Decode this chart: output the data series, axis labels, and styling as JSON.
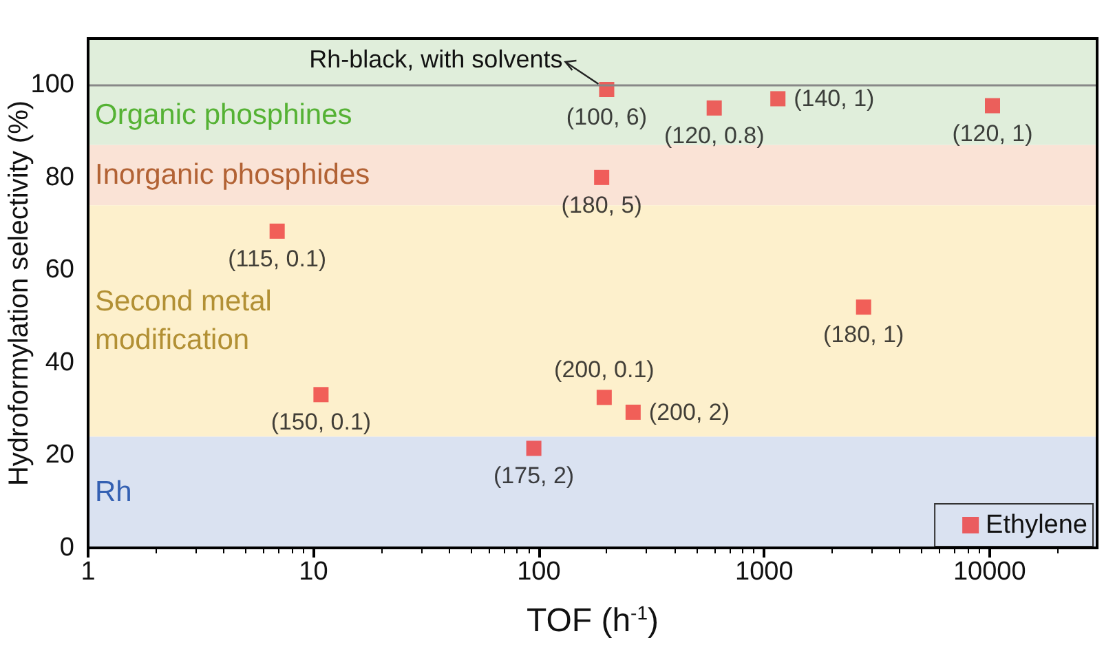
{
  "chart_data": {
    "type": "scatter",
    "xlabel": "TOF (h$^{-1}$)",
    "ylabel": "Hydroformylation selectivity (%)",
    "log": "x",
    "xlim": [
      1,
      30000
    ],
    "xticks": [
      1,
      10,
      100,
      1000,
      10000
    ],
    "ylim": [
      0,
      110
    ],
    "yticks": [
      0,
      20,
      40,
      60,
      80,
      100
    ],
    "grid": false,
    "legend": "bottom right",
    "marker": "square",
    "series": [
      {
        "name": "Ethylene",
        "color": "#ee3b3b",
        "x": [
          6.9,
          10.8,
          95,
          195,
          190,
          200,
          262,
          600,
          1150,
          2760,
          10300
        ],
        "values": [
          68.4,
          33.1,
          21.5,
          32.5,
          80,
          99,
          29.3,
          95,
          97,
          52,
          95.5
        ],
        "value_labels": [
          "(115, 0.1)",
          "(150, 0.1)",
          "(175, 2)",
          "(200, 0.1)",
          "(180, 5)",
          "(100, 6)",
          "(200, 2)",
          "(120, 0.8)",
          "(140, 1)",
          "(180, 1)",
          "(120, 1)"
        ]
      }
    ],
    "bands": [
      {
        "axis": "y",
        "from": 87,
        "to": 110,
        "label": "Organic phosphines",
        "color": "#e0eedb"
      },
      {
        "axis": "y",
        "from": 74,
        "to": 87,
        "label": "Inorganic phosphides",
        "color": "#fae3d6"
      },
      {
        "axis": "y",
        "from": 24,
        "to": 74,
        "label": "Second metal modification",
        "color": "#fdf0cc"
      },
      {
        "axis": "y",
        "from": 0,
        "to": 24,
        "label": "Rh",
        "color": "#dae2f1"
      }
    ],
    "ref_lines": [
      {
        "axis": "y",
        "value": 100,
        "color": "#888888"
      }
    ],
    "annotations": [
      {
        "text": "Rh-black, with solvents",
        "x": 200,
        "y": 99
      }
    ]
  }
}
